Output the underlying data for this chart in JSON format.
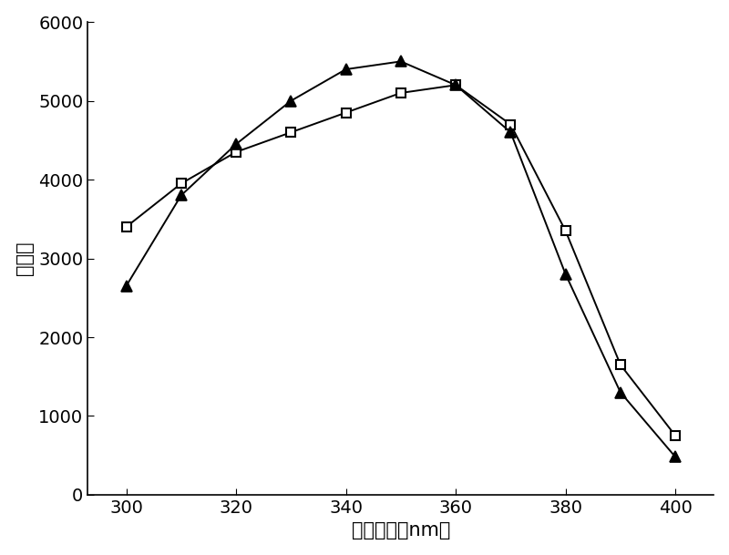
{
  "square_x": [
    300,
    310,
    320,
    330,
    340,
    350,
    360,
    370,
    380,
    390,
    400
  ],
  "square_y": [
    3400,
    3950,
    4350,
    4600,
    4850,
    5100,
    5200,
    4700,
    3350,
    1650,
    750
  ],
  "triangle_x": [
    300,
    310,
    320,
    330,
    340,
    350,
    360,
    370,
    380,
    390,
    400
  ],
  "triangle_y": [
    2650,
    3800,
    4450,
    5000,
    5400,
    5500,
    5200,
    4600,
    2800,
    1300,
    480
  ],
  "xlabel": "激发波长（nm）",
  "ylabel": "荧光值",
  "xlim": [
    293,
    407
  ],
  "ylim": [
    0,
    6000
  ],
  "xticks": [
    300,
    320,
    340,
    360,
    380,
    400
  ],
  "yticks": [
    0,
    1000,
    2000,
    3000,
    4000,
    5000,
    6000
  ],
  "line_color": "#000000",
  "bg_color": "#ffffff",
  "marker_size_square": 7,
  "marker_size_triangle": 9,
  "linewidth": 1.4,
  "xlabel_fontsize": 15,
  "ylabel_fontsize": 15,
  "tick_fontsize": 14
}
